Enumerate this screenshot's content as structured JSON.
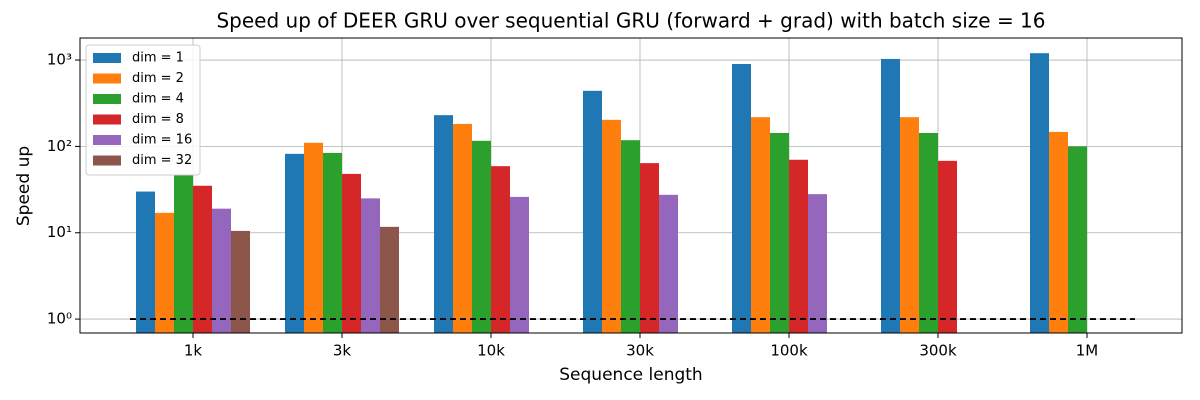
{
  "chart_data": {
    "type": "bar",
    "title": "Speed up of DEER GRU over sequential GRU (forward + grad) with batch size = 16",
    "x_label": "Sequence length",
    "y_label": "Speed up",
    "categories": [
      "1k",
      "3k",
      "10k",
      "30k",
      "100k",
      "300k",
      "1M"
    ],
    "series": [
      {
        "name": "dim = 1",
        "color": "#1f77b4",
        "values": [
          30,
          82,
          230,
          440,
          900,
          1030,
          1200
        ]
      },
      {
        "name": "dim = 2",
        "color": "#ff7f0e",
        "values": [
          17,
          110,
          182,
          203,
          218,
          218,
          147
        ]
      },
      {
        "name": "dim = 4",
        "color": "#2ca02c",
        "values": [
          47,
          84,
          116,
          118,
          143,
          143,
          100
        ]
      },
      {
        "name": "dim = 8",
        "color": "#d62728",
        "values": [
          35,
          48,
          59,
          64,
          70,
          68,
          null
        ]
      },
      {
        "name": "dim = 16",
        "color": "#9467bd",
        "values": [
          19,
          25,
          26,
          27.5,
          28,
          null,
          null
        ]
      },
      {
        "name": "dim = 32",
        "color": "#8c564b",
        "values": [
          10.5,
          11.7,
          null,
          null,
          null,
          null,
          null
        ]
      }
    ],
    "reference_line": 1,
    "log_y": true,
    "ylim": [
      0.69,
      1800
    ],
    "yticks": [
      {
        "value": 1,
        "label": "10⁰"
      },
      {
        "value": 10,
        "label": "10¹"
      },
      {
        "value": 100,
        "label": "10²"
      },
      {
        "value": 1000,
        "label": "10³"
      }
    ],
    "grid": true,
    "legend": "upper left"
  }
}
